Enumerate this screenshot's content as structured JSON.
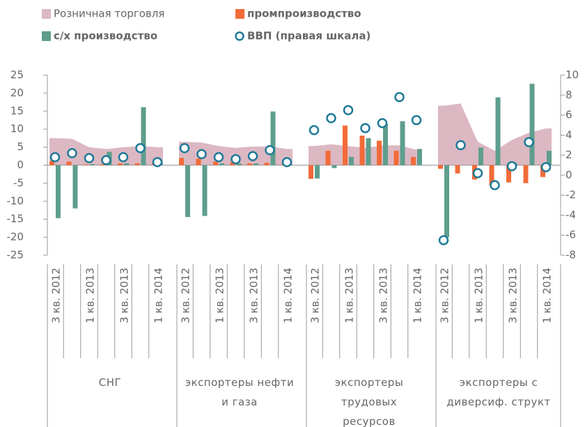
{
  "chart_data": {
    "type": "combo",
    "groups": [
      "СНГ",
      "экспортеры нефти и газа",
      "экспортеры трудовых ресурсов",
      "экспортеры с диверсиф. структ"
    ],
    "categories": [
      "3 кв. 2012",
      null,
      "1 кв. 2013",
      null,
      "3 кв. 2013",
      null,
      "1 кв. 2014",
      "3 кв. 2012",
      null,
      "1 кв. 2013",
      null,
      "3 кв. 2013",
      null,
      "1 кв. 2014",
      "3 кв. 2012",
      null,
      "1 кв. 2013",
      null,
      "3 кв. 2013",
      null,
      "1 кв. 2014",
      "3 кв. 2012",
      null,
      "1 кв. 2013",
      null,
      "3 кв. 2013",
      null,
      "1 кв. 2014"
    ],
    "series": [
      {
        "name": "Розничная торговля",
        "kind": "area",
        "color": "#dcb8c3",
        "values": [
          7.5,
          7.3,
          5.0,
          4.5,
          5.0,
          5.3,
          5.0,
          6.5,
          6.3,
          5.3,
          4.8,
          5.2,
          5.2,
          4.5,
          5.3,
          5.8,
          5.3,
          4.8,
          5.5,
          5.5,
          4.3,
          16.5,
          17.1,
          6.5,
          4.0,
          7.0,
          9.0,
          10.2
        ]
      },
      {
        "name": "промпроизводство",
        "kind": "bar",
        "color": "#f26b38",
        "values": [
          1.2,
          1.0,
          0.2,
          0.3,
          0.5,
          0.5,
          0.5,
          2.0,
          1.8,
          1.0,
          0.8,
          0.5,
          0.7,
          0.3,
          -3.8,
          4.0,
          11.0,
          8.2,
          6.8,
          4.0,
          2.3,
          -1.0,
          -2.3,
          -4.0,
          -5.6,
          -4.8,
          -5.0,
          -3.3
        ]
      },
      {
        "name": "с/х производство",
        "kind": "bar",
        "color": "#5e9e8d",
        "values": [
          -14.7,
          -12.0,
          0.3,
          3.7,
          0.5,
          16.1,
          0.5,
          -14.4,
          -14.1,
          0.5,
          0.5,
          0.5,
          14.9,
          0.3,
          -3.7,
          -0.8,
          2.3,
          7.5,
          11.5,
          12.2,
          4.5,
          -20.0,
          0,
          4.9,
          18.8,
          0.5,
          22.6,
          4.0
        ]
      },
      {
        "name": "ВВП (правая шкала)",
        "kind": "dot",
        "axis": "y2",
        "color": "#1f7a98",
        "values": [
          1.8,
          2.2,
          1.7,
          1.5,
          1.8,
          2.7,
          1.3,
          2.7,
          2.1,
          1.8,
          1.6,
          1.9,
          2.5,
          1.3,
          4.5,
          5.7,
          6.5,
          4.7,
          5.2,
          7.8,
          5.5,
          -6.5,
          3.0,
          0.2,
          -1.0,
          0.9,
          3.3,
          0.8
        ]
      }
    ],
    "ylim": [
      -25,
      25
    ],
    "yticks": [
      -25,
      -20,
      -15,
      -10,
      -5,
      0,
      5,
      10,
      15,
      20,
      25
    ],
    "y2lim": [
      -8,
      10
    ],
    "y2ticks": [
      -8,
      -6,
      -4,
      -2,
      0,
      2,
      4,
      6,
      8,
      10
    ]
  }
}
